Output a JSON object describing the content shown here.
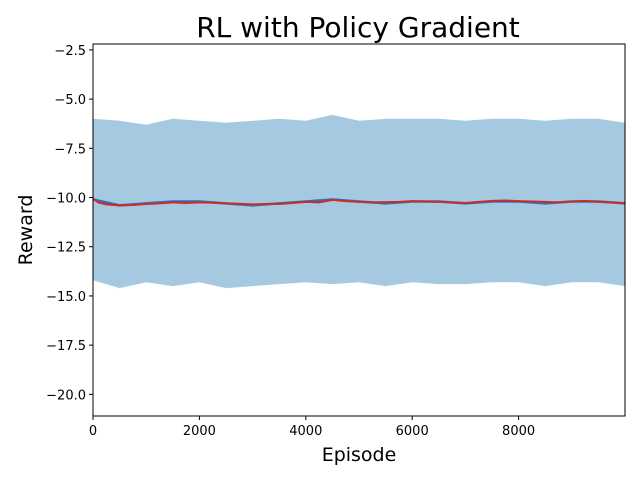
{
  "chart_data": {
    "type": "line",
    "title": "RL with Policy Gradient",
    "xlabel": "Episode",
    "ylabel": "Reward",
    "xlim": [
      0,
      10000
    ],
    "ylim": [
      -21.1,
      -2.2
    ],
    "xticks": [
      0,
      2000,
      4000,
      6000,
      8000
    ],
    "xtick_labels": [
      "0",
      "2000",
      "4000",
      "6000",
      "8000"
    ],
    "yticks": [
      -2.5,
      -5.0,
      -7.5,
      -10.0,
      -12.5,
      -15.0,
      -17.5,
      -20.0
    ],
    "ytick_labels": [
      "−2.5",
      "−5.0",
      "−7.5",
      "−10.0",
      "−12.5",
      "−15.0",
      "−17.5",
      "−20.0"
    ],
    "grid": false,
    "legend": "none",
    "series": [
      {
        "role": "band",
        "color": "#1f77b4",
        "x": [
          0,
          500,
          1000,
          1500,
          2000,
          2500,
          3000,
          3500,
          4000,
          4500,
          5000,
          5500,
          6000,
          6500,
          7000,
          7500,
          8000,
          8500,
          9000,
          9500,
          10000
        ],
        "upper": [
          -6.0,
          -6.1,
          -6.3,
          -6.0,
          -6.1,
          -6.2,
          -6.1,
          -6.0,
          -6.1,
          -5.8,
          -6.1,
          -6.0,
          -6.0,
          -6.0,
          -6.1,
          -6.0,
          -6.0,
          -6.1,
          -6.0,
          -6.0,
          -6.2
        ],
        "lower": [
          -14.2,
          -14.6,
          -14.3,
          -14.5,
          -14.3,
          -14.6,
          -14.5,
          -14.4,
          -14.3,
          -14.4,
          -14.3,
          -14.5,
          -14.3,
          -14.4,
          -14.4,
          -14.3,
          -14.3,
          -14.5,
          -14.3,
          -14.3,
          -14.5
        ]
      },
      {
        "role": "mean",
        "color": "#1f77b4",
        "x": [
          0,
          500,
          1000,
          1500,
          2000,
          2500,
          3000,
          3500,
          4000,
          4500,
          5000,
          5500,
          6000,
          6500,
          7000,
          7500,
          8000,
          8500,
          9000,
          9500,
          10000
        ],
        "y": [
          -10.1,
          -10.4,
          -10.3,
          -10.2,
          -10.2,
          -10.3,
          -10.4,
          -10.3,
          -10.2,
          -10.1,
          -10.2,
          -10.3,
          -10.2,
          -10.2,
          -10.3,
          -10.2,
          -10.2,
          -10.3,
          -10.2,
          -10.2,
          -10.3
        ]
      },
      {
        "role": "moving-average",
        "color": "#d62728",
        "x": [
          0,
          100,
          250,
          500,
          750,
          1000,
          1250,
          1500,
          1750,
          2000,
          2250,
          2500,
          2750,
          3000,
          3250,
          3500,
          3750,
          4000,
          4250,
          4500,
          4750,
          5000,
          5250,
          5500,
          5750,
          6000,
          6250,
          6500,
          6750,
          7000,
          7250,
          7500,
          7750,
          8000,
          8250,
          8500,
          8750,
          9000,
          9250,
          9500,
          9750,
          10000
        ],
        "y": [
          -10.05,
          -10.25,
          -10.35,
          -10.4,
          -10.38,
          -10.33,
          -10.3,
          -10.25,
          -10.28,
          -10.25,
          -10.27,
          -10.3,
          -10.32,
          -10.35,
          -10.33,
          -10.33,
          -10.28,
          -10.22,
          -10.25,
          -10.12,
          -10.18,
          -10.22,
          -10.25,
          -10.23,
          -10.22,
          -10.18,
          -10.2,
          -10.22,
          -10.25,
          -10.28,
          -10.22,
          -10.17,
          -10.15,
          -10.18,
          -10.2,
          -10.22,
          -10.25,
          -10.2,
          -10.17,
          -10.22,
          -10.25,
          -10.3
        ]
      }
    ]
  }
}
